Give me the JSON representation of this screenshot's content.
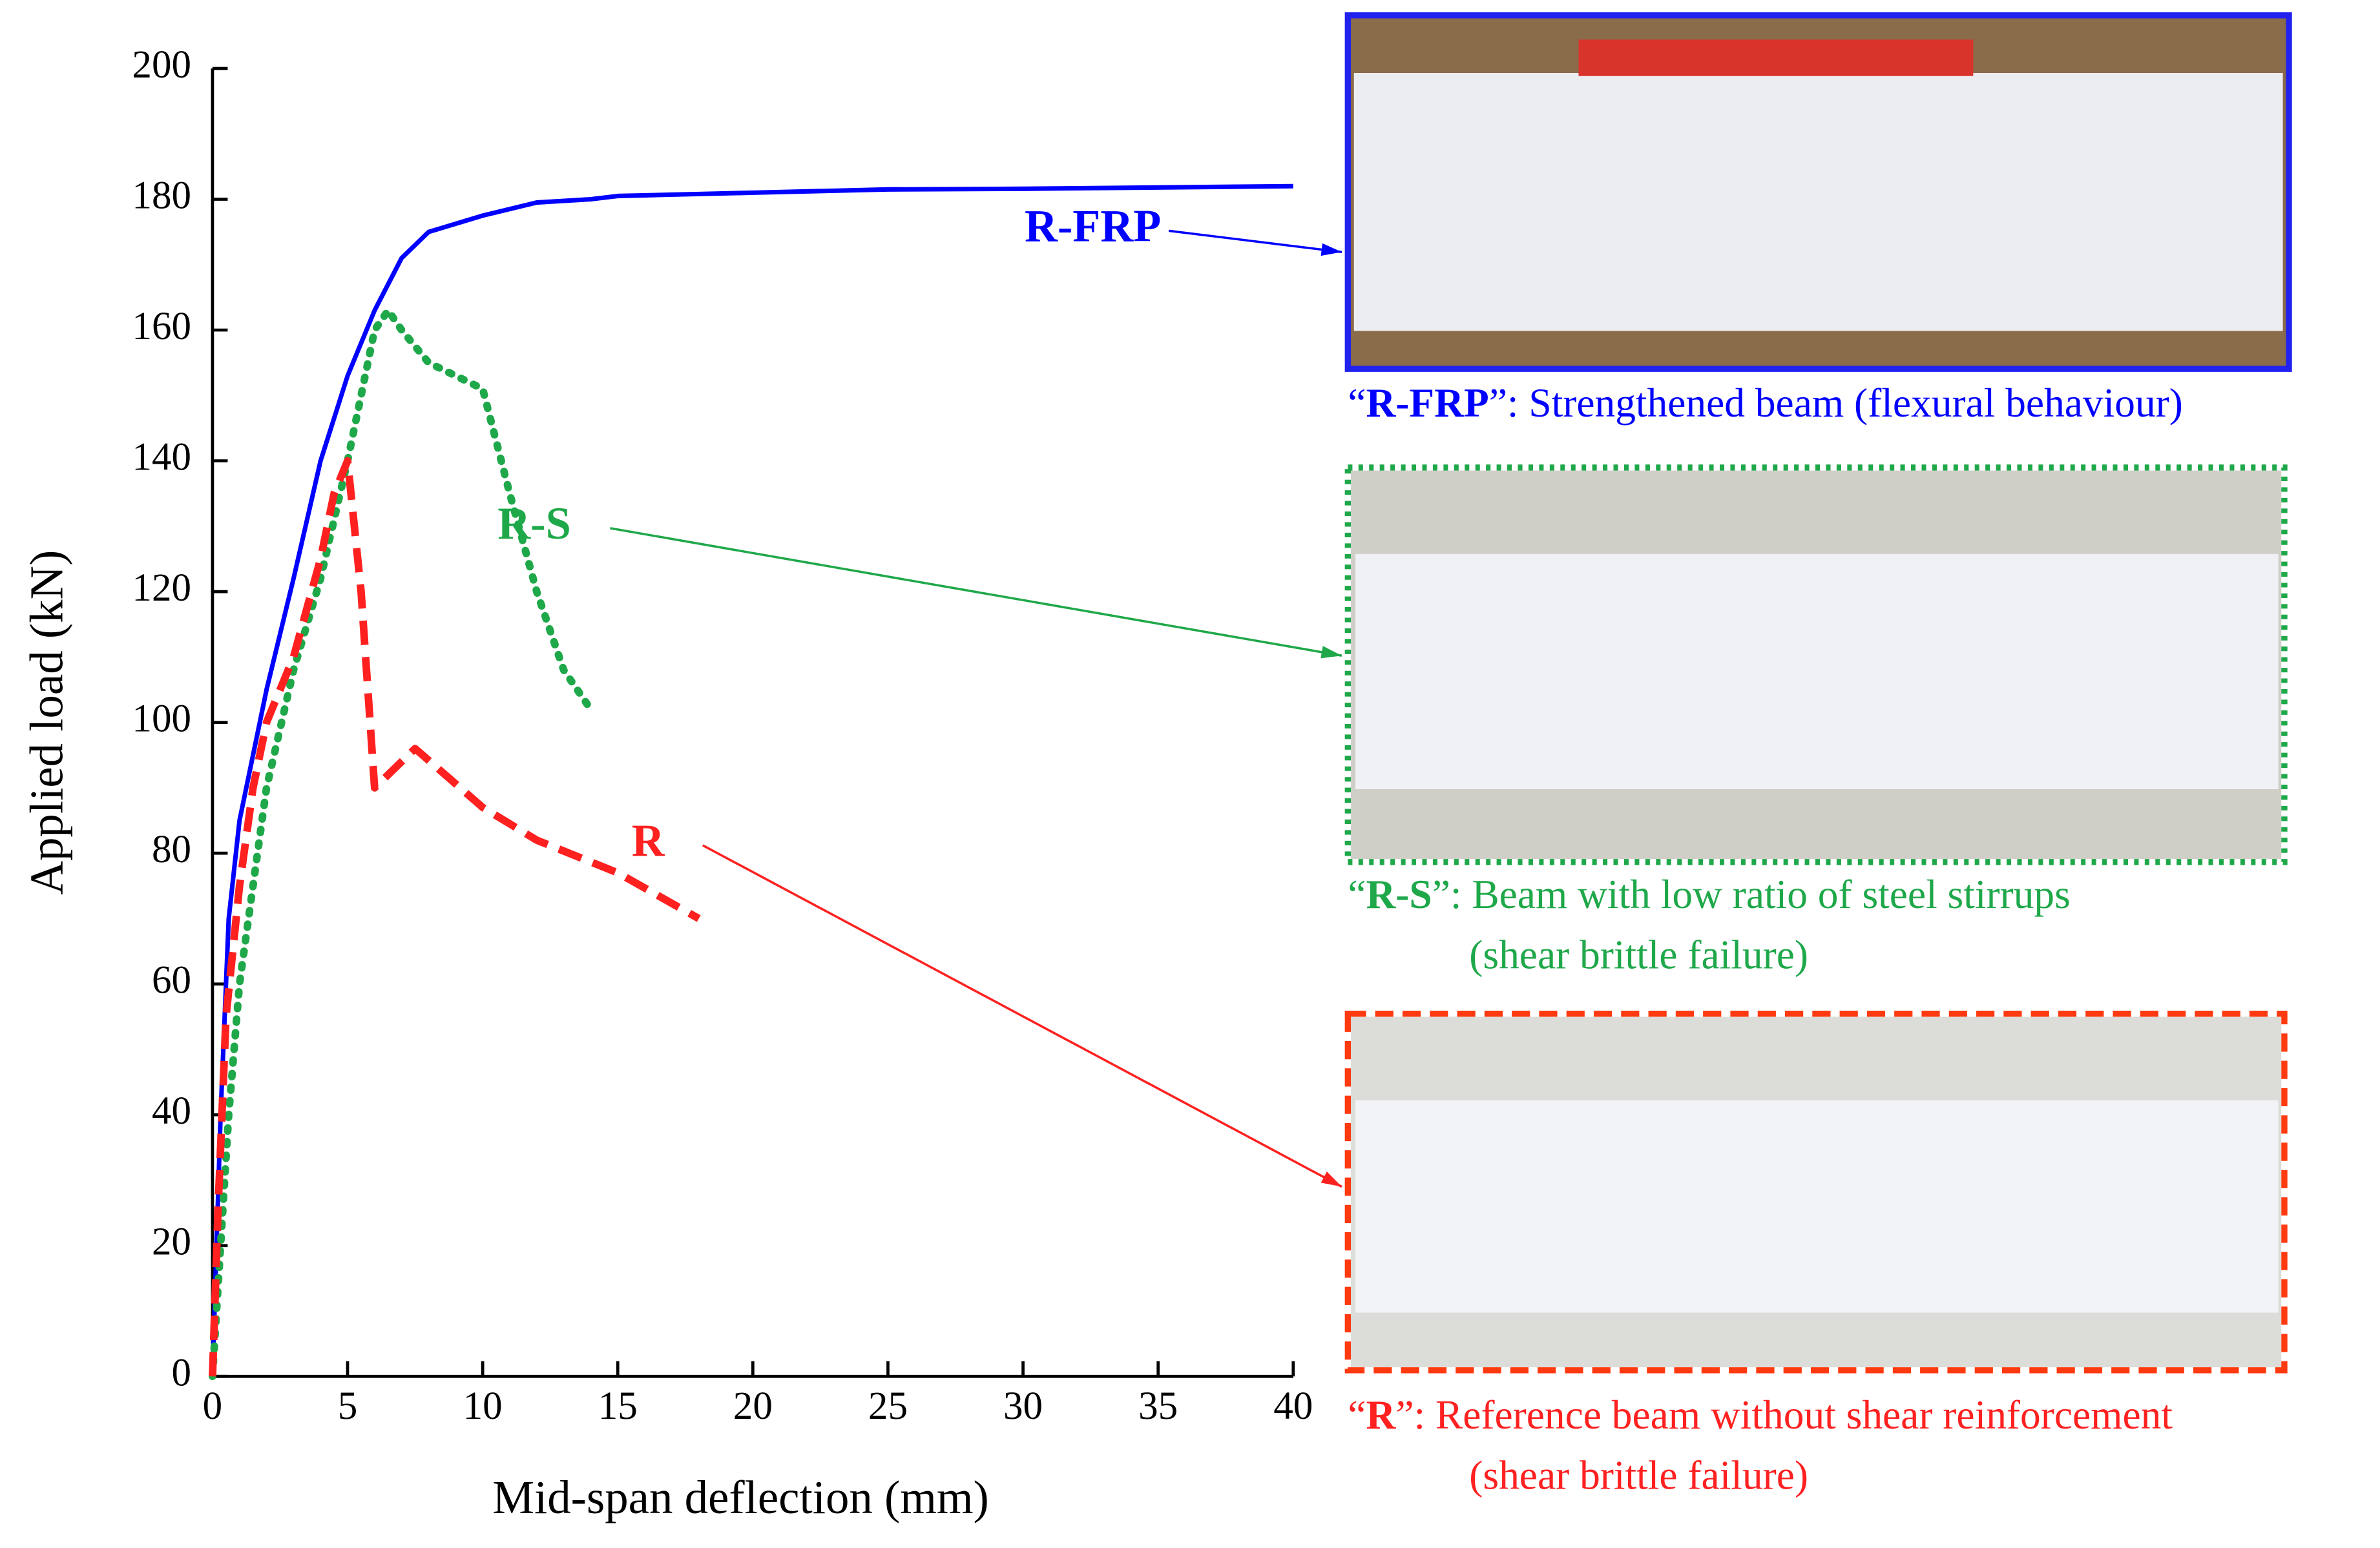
{
  "chart_data": {
    "type": "line",
    "xlabel": "Mid-span deflection (mm)",
    "ylabel": "Applied load (kN)",
    "xlim": [
      0,
      40
    ],
    "xticks": [
      0,
      5,
      10,
      15,
      20,
      25,
      30,
      35,
      40
    ],
    "ylim": [
      0,
      200
    ],
    "yticks": [
      0,
      20,
      40,
      60,
      80,
      100,
      120,
      140,
      160,
      180,
      200
    ],
    "series": [
      {
        "name": "R-FRP",
        "color": "#0000ff",
        "style": "solid",
        "x": [
          0,
          0.3,
          0.6,
          1,
          2,
          3,
          4,
          5,
          6,
          7,
          8,
          10,
          12,
          14,
          15,
          20,
          25,
          30,
          40
        ],
        "values": [
          0,
          40,
          70,
          85,
          105,
          122,
          140,
          153,
          163,
          171,
          175,
          177.5,
          179.5,
          180,
          180.5,
          181,
          181.5,
          181.6,
          182
        ],
        "caption_open": "“",
        "caption_close": "”: Strengthened beam (flexural behaviour)"
      },
      {
        "name": "R-S",
        "color": "#1fa84a",
        "style": "dotted",
        "x": [
          0,
          0.3,
          0.6,
          1,
          1.5,
          2,
          3,
          4,
          5,
          6,
          6.5,
          7,
          8,
          10,
          11,
          12,
          13,
          14
        ],
        "values": [
          0,
          20,
          40,
          60,
          75,
          90,
          108,
          122,
          140,
          160,
          163,
          160,
          155,
          151,
          135,
          120,
          108,
          102
        ],
        "caption_open": "“",
        "caption_close": "”: Beam with low ratio of steel stirrups",
        "caption_line2": "(shear brittle failure)"
      },
      {
        "name": "R",
        "color": "#ff2020",
        "style": "dashed",
        "x": [
          0,
          0.2,
          0.5,
          1,
          1.5,
          2,
          3,
          4,
          4.5,
          5,
          5.5,
          6,
          7.5,
          10,
          12,
          15,
          18
        ],
        "values": [
          0,
          25,
          55,
          75,
          90,
          100,
          110,
          125,
          135,
          140,
          120,
          90,
          96,
          87,
          82,
          77,
          70
        ],
        "caption_open": "“",
        "caption_close": "”: Reference beam without shear reinforcement",
        "caption_line2": "(shear brittle failure)"
      }
    ]
  }
}
